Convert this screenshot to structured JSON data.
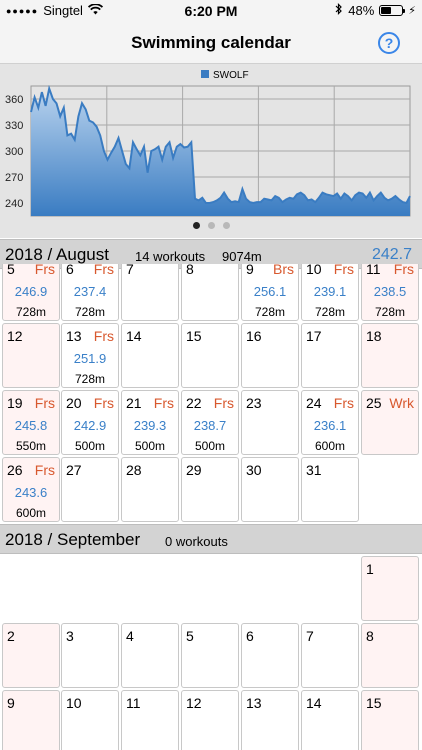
{
  "status": {
    "carrier": "Singtel",
    "time": "6:20 PM",
    "battery": "48%"
  },
  "nav": {
    "title": "Swimming calendar",
    "help_label": "?"
  },
  "chart_data": {
    "type": "area",
    "legend": "SWOLF",
    "y_ticks": [
      "360",
      "330",
      "300",
      "270",
      "240"
    ],
    "ylim": [
      225,
      375
    ],
    "y": [
      345,
      362,
      350,
      368,
      352,
      372,
      360,
      355,
      340,
      350,
      318,
      320,
      313,
      340,
      355,
      348,
      335,
      333,
      328,
      318,
      300,
      290,
      298,
      305,
      315,
      300,
      285,
      280,
      310,
      302,
      295,
      305,
      275,
      300,
      302,
      305,
      290,
      305,
      310,
      292,
      305,
      308,
      304,
      305,
      310,
      245,
      243,
      246,
      240,
      240,
      241,
      243,
      246,
      252,
      245,
      241,
      242,
      241,
      256,
      245,
      241,
      240,
      241,
      241,
      245,
      244,
      243,
      248,
      246,
      241,
      244,
      246,
      245,
      250,
      252,
      249,
      243,
      244,
      241,
      246,
      252,
      250,
      249,
      248,
      251,
      245,
      251,
      248,
      243,
      249,
      252,
      251,
      246,
      252,
      243,
      248,
      252,
      246,
      243,
      245,
      248,
      244,
      241,
      240,
      248
    ],
    "color": "#3a7cc2"
  },
  "pager": {
    "count": 3,
    "active": 0
  },
  "months": [
    {
      "name": "2018 / August",
      "workouts": "14 workouts",
      "distance": "9074m",
      "avg": "242.7",
      "cells": [
        {
          "day": "5",
          "tag": "Frs",
          "swolf": "246.9",
          "dist": "728m",
          "weekend": true
        },
        {
          "day": "6",
          "tag": "Frs",
          "swolf": "237.4",
          "dist": "728m",
          "weekend": false
        },
        {
          "day": "7",
          "tag": "",
          "swolf": "",
          "dist": "",
          "weekend": false
        },
        {
          "day": "8",
          "tag": "",
          "swolf": "",
          "dist": "",
          "weekend": false
        },
        {
          "day": "9",
          "tag": "Brs",
          "swolf": "256.1",
          "dist": "728m",
          "weekend": false
        },
        {
          "day": "10",
          "tag": "Frs",
          "swolf": "239.1",
          "dist": "728m",
          "weekend": false
        },
        {
          "day": "11",
          "tag": "Frs",
          "swolf": "238.5",
          "dist": "728m",
          "weekend": true
        },
        {
          "day": "12",
          "tag": "",
          "swolf": "",
          "dist": "",
          "weekend": true
        },
        {
          "day": "13",
          "tag": "Frs",
          "swolf": "251.9",
          "dist": "728m",
          "weekend": false
        },
        {
          "day": "14",
          "tag": "",
          "swolf": "",
          "dist": "",
          "weekend": false
        },
        {
          "day": "15",
          "tag": "",
          "swolf": "",
          "dist": "",
          "weekend": false
        },
        {
          "day": "16",
          "tag": "",
          "swolf": "",
          "dist": "",
          "weekend": false
        },
        {
          "day": "17",
          "tag": "",
          "swolf": "",
          "dist": "",
          "weekend": false
        },
        {
          "day": "18",
          "tag": "",
          "swolf": "",
          "dist": "",
          "weekend": true
        },
        {
          "day": "19",
          "tag": "Frs",
          "swolf": "245.8",
          "dist": "550m",
          "weekend": true
        },
        {
          "day": "20",
          "tag": "Frs",
          "swolf": "242.9",
          "dist": "500m",
          "weekend": false
        },
        {
          "day": "21",
          "tag": "Frs",
          "swolf": "239.3",
          "dist": "500m",
          "weekend": false
        },
        {
          "day": "22",
          "tag": "Frs",
          "swolf": "238.7",
          "dist": "500m",
          "weekend": false
        },
        {
          "day": "23",
          "tag": "",
          "swolf": "",
          "dist": "",
          "weekend": false
        },
        {
          "day": "24",
          "tag": "Frs",
          "swolf": "236.1",
          "dist": "600m",
          "weekend": false
        },
        {
          "day": "25",
          "tag": "Wrk",
          "swolf": "",
          "dist": "",
          "weekend": true
        },
        {
          "day": "26",
          "tag": "Frs",
          "swolf": "243.6",
          "dist": "600m",
          "weekend": true
        },
        {
          "day": "27",
          "tag": "",
          "swolf": "",
          "dist": "",
          "weekend": false
        },
        {
          "day": "28",
          "tag": "",
          "swolf": "",
          "dist": "",
          "weekend": false
        },
        {
          "day": "29",
          "tag": "",
          "swolf": "",
          "dist": "",
          "weekend": false
        },
        {
          "day": "30",
          "tag": "",
          "swolf": "",
          "dist": "",
          "weekend": false
        },
        {
          "day": "31",
          "tag": "",
          "swolf": "",
          "dist": "",
          "weekend": false
        }
      ]
    },
    {
      "name": "2018 / September",
      "workouts": "0 workouts",
      "distance": "",
      "avg": "",
      "cells": [
        {
          "day": "1",
          "tag": "",
          "swolf": "",
          "dist": "",
          "weekend": true
        },
        {
          "day": "2",
          "tag": "",
          "swolf": "",
          "dist": "",
          "weekend": true
        },
        {
          "day": "3",
          "tag": "",
          "swolf": "",
          "dist": "",
          "weekend": false
        },
        {
          "day": "4",
          "tag": "",
          "swolf": "",
          "dist": "",
          "weekend": false
        },
        {
          "day": "5",
          "tag": "",
          "swolf": "",
          "dist": "",
          "weekend": false
        },
        {
          "day": "6",
          "tag": "",
          "swolf": "",
          "dist": "",
          "weekend": false
        },
        {
          "day": "7",
          "tag": "",
          "swolf": "",
          "dist": "",
          "weekend": false
        },
        {
          "day": "8",
          "tag": "",
          "swolf": "",
          "dist": "",
          "weekend": true
        },
        {
          "day": "9",
          "tag": "",
          "swolf": "",
          "dist": "",
          "weekend": true
        },
        {
          "day": "10",
          "tag": "",
          "swolf": "",
          "dist": "",
          "weekend": false
        },
        {
          "day": "11",
          "tag": "",
          "swolf": "",
          "dist": "",
          "weekend": false
        },
        {
          "day": "12",
          "tag": "",
          "swolf": "",
          "dist": "",
          "weekend": false
        },
        {
          "day": "13",
          "tag": "",
          "swolf": "",
          "dist": "",
          "weekend": false
        },
        {
          "day": "14",
          "tag": "",
          "swolf": "",
          "dist": "",
          "weekend": false
        },
        {
          "day": "15",
          "tag": "",
          "swolf": "",
          "dist": "",
          "weekend": true
        }
      ]
    }
  ]
}
